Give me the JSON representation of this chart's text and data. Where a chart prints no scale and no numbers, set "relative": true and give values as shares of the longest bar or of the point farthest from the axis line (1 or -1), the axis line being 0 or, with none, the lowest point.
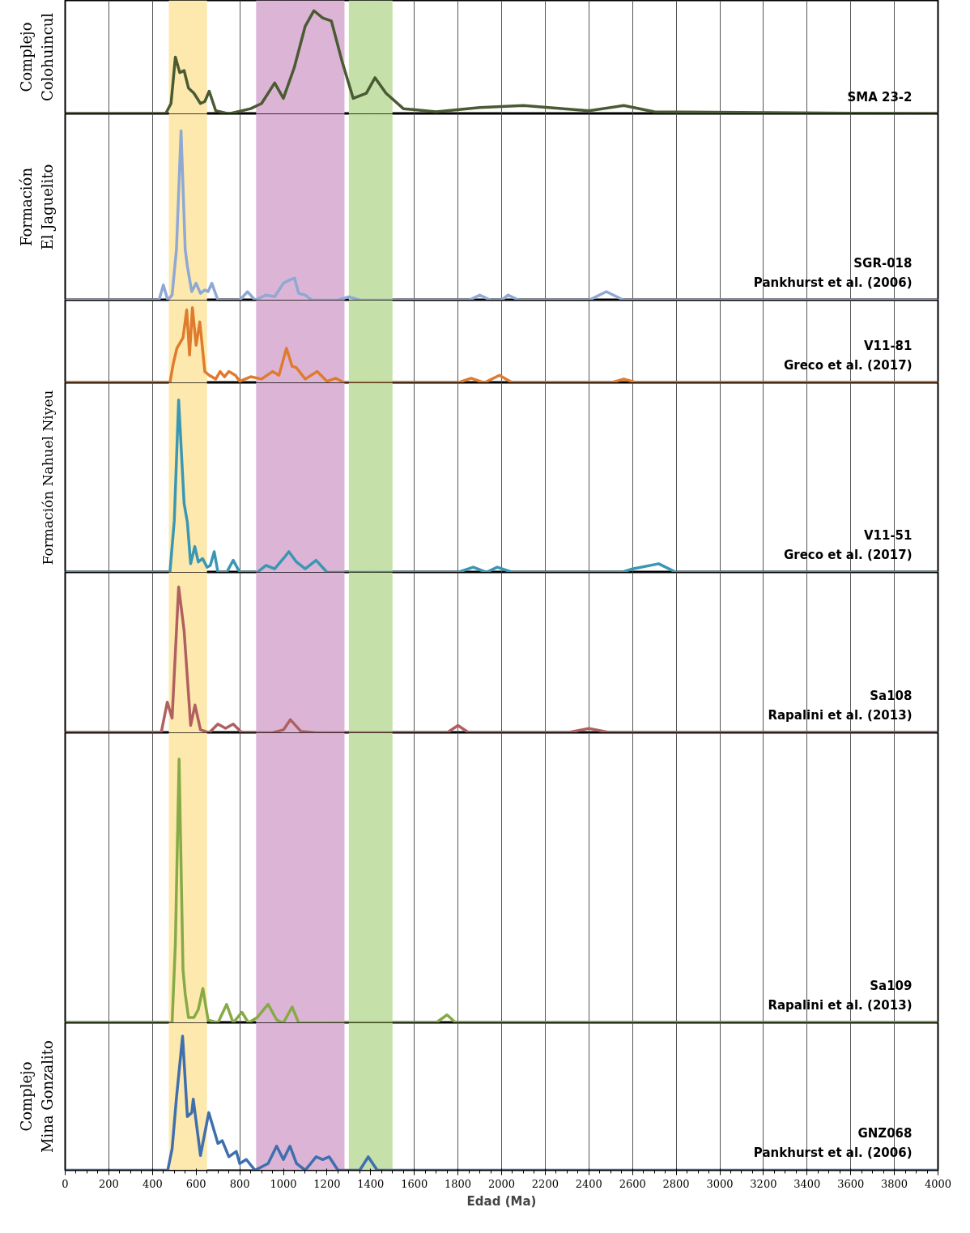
{
  "chart_data": [
    {
      "type": "line",
      "relative": true,
      "ylabel": "Complejo\nColohuincul",
      "xlim": [
        0,
        4000
      ],
      "xticks": [
        0,
        200,
        400,
        600,
        800,
        1000,
        1200,
        1400,
        1600,
        1800,
        2000,
        2200,
        2400,
        2600,
        2800,
        3000,
        3200,
        3400,
        3600,
        3800,
        4000
      ],
      "tick_labels": false,
      "grid": "x",
      "bands": [
        {
          "axis": "x",
          "from": 475,
          "to": 650,
          "color": "#fde9ad"
        },
        {
          "axis": "x",
          "from": 875,
          "to": 1280,
          "color": "#dcb5d6"
        },
        {
          "axis": "x",
          "from": 1300,
          "to": 1500,
          "color": "#c6e0a9"
        }
      ],
      "x": [
        0,
        460,
        485,
        505,
        525,
        545,
        565,
        590,
        620,
        640,
        660,
        690,
        750,
        850,
        900,
        960,
        1000,
        1050,
        1100,
        1140,
        1180,
        1220,
        1270,
        1320,
        1380,
        1420,
        1470,
        1550,
        1700,
        1900,
        2100,
        2400,
        2560,
        2700,
        4000
      ],
      "series": [
        {
          "name": "SMA 23-2",
          "color": "#4a5a32",
          "values": [
            0,
            0,
            0.1,
            0.55,
            0.4,
            0.42,
            0.25,
            0.2,
            0.1,
            0.12,
            0.22,
            0.03,
            0,
            0.05,
            0.1,
            0.3,
            0.15,
            0.45,
            0.85,
            1.0,
            0.93,
            0.9,
            0.5,
            0.15,
            0.2,
            0.35,
            0.2,
            0.05,
            0.02,
            0.06,
            0.08,
            0.03,
            0.08,
            0.02,
            0
          ]
        }
      ]
    },
    {
      "type": "line",
      "relative": true,
      "ylabel": "Formación\nEl Jaguelito",
      "xlim": [
        0,
        4000
      ],
      "xticks": [
        0,
        200,
        400,
        600,
        800,
        1000,
        1200,
        1400,
        1600,
        1800,
        2000,
        2200,
        2400,
        2600,
        2800,
        3000,
        3200,
        3400,
        3600,
        3800,
        4000
      ],
      "tick_labels": false,
      "grid": "x",
      "bands": [
        {
          "axis": "x",
          "from": 475,
          "to": 650,
          "color": "#fde9ad"
        },
        {
          "axis": "x",
          "from": 875,
          "to": 1280,
          "color": "#dcb5d6"
        },
        {
          "axis": "x",
          "from": 1300,
          "to": 1500,
          "color": "#c6e0a9"
        }
      ],
      "x": [
        0,
        430,
        450,
        470,
        490,
        510,
        531,
        550,
        560,
        580,
        600,
        620,
        640,
        655,
        672,
        700,
        800,
        836,
        870,
        920,
        960,
        1000,
        1030,
        1051,
        1070,
        1100,
        1130,
        1250,
        1300,
        1350,
        1850,
        1900,
        1950,
        2000,
        2030,
        2080,
        2400,
        2480,
        2560,
        4000
      ],
      "series": [
        {
          "name": "SGR-018",
          "color": "#8fa8d4",
          "values": [
            0,
            0,
            0.09,
            0,
            0.03,
            0.3,
            1.0,
            0.3,
            0.2,
            0.05,
            0.1,
            0.04,
            0.06,
            0.05,
            0.1,
            0,
            0,
            0.05,
            0,
            0.03,
            0.02,
            0.1,
            0.12,
            0.13,
            0.04,
            0.03,
            0,
            0,
            0.02,
            0,
            0,
            0.03,
            0,
            0,
            0.03,
            0,
            0,
            0.05,
            0,
            0
          ]
        }
      ],
      "annotations": [
        "Pankhurst et al. (2006)"
      ]
    },
    {
      "type": "line",
      "relative": true,
      "xlim": [
        0,
        4000
      ],
      "xticks": [
        0,
        200,
        400,
        600,
        800,
        1000,
        1200,
        1400,
        1600,
        1800,
        2000,
        2200,
        2400,
        2600,
        2800,
        3000,
        3200,
        3400,
        3600,
        3800,
        4000
      ],
      "tick_labels": false,
      "grid": "x",
      "bands": [
        {
          "axis": "x",
          "from": 475,
          "to": 650,
          "color": "#fde9ad"
        },
        {
          "axis": "x",
          "from": 875,
          "to": 1280,
          "color": "#dcb5d6"
        },
        {
          "axis": "x",
          "from": 1300,
          "to": 1500,
          "color": "#c6e0a9"
        }
      ],
      "x": [
        0,
        480,
        495,
        512,
        540,
        557,
        570,
        583,
        600,
        617,
        640,
        660,
        690,
        710,
        730,
        750,
        780,
        800,
        850,
        900,
        950,
        980,
        1014,
        1040,
        1060,
        1100,
        1155,
        1200,
        1240,
        1280,
        1800,
        1860,
        1920,
        1990,
        2050,
        2500,
        2560,
        2620,
        4000
      ],
      "series": [
        {
          "name": "V11-81",
          "color": "#e07b2e",
          "values": [
            0,
            0,
            0.25,
            0.46,
            0.6,
            0.97,
            0.37,
            1.0,
            0.5,
            0.81,
            0.15,
            0.1,
            0.05,
            0.15,
            0.08,
            0.15,
            0.1,
            0.02,
            0.08,
            0.05,
            0.15,
            0.1,
            0.46,
            0.22,
            0.2,
            0.05,
            0.15,
            0.02,
            0.06,
            0,
            0,
            0.06,
            0,
            0.1,
            0,
            0,
            0.05,
            0,
            0
          ]
        }
      ],
      "annotations": [
        "Greco et al. (2017)"
      ]
    },
    {
      "type": "line",
      "relative": true,
      "ylabel": "Formación Nahuel Niyeu",
      "xlim": [
        0,
        4000
      ],
      "xticks": [
        0,
        200,
        400,
        600,
        800,
        1000,
        1200,
        1400,
        1600,
        1800,
        2000,
        2200,
        2400,
        2600,
        2800,
        3000,
        3200,
        3400,
        3600,
        3800,
        4000
      ],
      "tick_labels": false,
      "grid": "x",
      "bands": [
        {
          "axis": "x",
          "from": 475,
          "to": 650,
          "color": "#fde9ad"
        },
        {
          "axis": "x",
          "from": 875,
          "to": 1280,
          "color": "#dcb5d6"
        },
        {
          "axis": "x",
          "from": 1300,
          "to": 1500,
          "color": "#c6e0a9"
        }
      ],
      "x": [
        0,
        480,
        500,
        520,
        545,
        560,
        575,
        594,
        610,
        630,
        650,
        665,
        683,
        700,
        740,
        770,
        800,
        880,
        920,
        960,
        1000,
        1025,
        1060,
        1100,
        1150,
        1200,
        1800,
        1870,
        1930,
        1980,
        2050,
        2550,
        2600,
        2720,
        2800,
        4000
      ],
      "series": [
        {
          "name": "V11-51",
          "color": "#3a97b4",
          "values": [
            0,
            0,
            0.3,
            1.0,
            0.4,
            0.29,
            0.05,
            0.15,
            0.06,
            0.08,
            0.03,
            0.04,
            0.12,
            0,
            0,
            0.07,
            0,
            0,
            0.04,
            0.02,
            0.08,
            0.12,
            0.06,
            0.02,
            0.07,
            0,
            0,
            0.03,
            0,
            0.03,
            0,
            0,
            0.02,
            0.05,
            0,
            0
          ]
        }
      ],
      "annotations": [
        "Greco et al. (2017)"
      ]
    },
    {
      "type": "line",
      "relative": true,
      "xlim": [
        0,
        4000
      ],
      "xticks": [
        0,
        200,
        400,
        600,
        800,
        1000,
        1200,
        1400,
        1600,
        1800,
        2000,
        2200,
        2400,
        2600,
        2800,
        3000,
        3200,
        3400,
        3600,
        3800,
        4000
      ],
      "tick_labels": false,
      "grid": "x",
      "bands": [
        {
          "axis": "x",
          "from": 475,
          "to": 650,
          "color": "#fde9ad"
        },
        {
          "axis": "x",
          "from": 875,
          "to": 1280,
          "color": "#dcb5d6"
        },
        {
          "axis": "x",
          "from": 1300,
          "to": 1500,
          "color": "#c6e0a9"
        }
      ],
      "x": [
        0,
        440,
        468,
        490,
        520,
        545,
        575,
        595,
        620,
        660,
        700,
        735,
        770,
        810,
        950,
        1000,
        1032,
        1080,
        1150,
        1750,
        1800,
        1850,
        2300,
        2400,
        2500,
        4000
      ],
      "series": [
        {
          "name": "Sa108",
          "color": "#b06060",
          "values": [
            0,
            0,
            0.21,
            0.1,
            1.0,
            0.7,
            0.05,
            0.19,
            0.02,
            0,
            0.06,
            0.03,
            0.06,
            0,
            0,
            0.02,
            0.09,
            0.01,
            0,
            0,
            0.05,
            0,
            0,
            0.03,
            0,
            0
          ]
        }
      ],
      "annotations": [
        "Rapalini et al. (2013)"
      ]
    },
    {
      "type": "line",
      "relative": true,
      "xlim": [
        0,
        4000
      ],
      "xticks": [
        0,
        200,
        400,
        600,
        800,
        1000,
        1200,
        1400,
        1600,
        1800,
        2000,
        2200,
        2400,
        2600,
        2800,
        3000,
        3200,
        3400,
        3600,
        3800,
        4000
      ],
      "tick_labels": false,
      "grid": "x",
      "bands": [
        {
          "axis": "x",
          "from": 475,
          "to": 650,
          "color": "#fde9ad"
        },
        {
          "axis": "x",
          "from": 875,
          "to": 1280,
          "color": "#dcb5d6"
        },
        {
          "axis": "x",
          "from": 1300,
          "to": 1500,
          "color": "#c6e0a9"
        }
      ],
      "x": [
        0,
        490,
        505,
        522,
        540,
        550,
        565,
        590,
        610,
        631,
        655,
        700,
        740,
        770,
        810,
        840,
        880,
        930,
        970,
        1000,
        1040,
        1070,
        1700,
        1750,
        1790,
        4000
      ],
      "series": [
        {
          "name": "Sa109",
          "color": "#86aa46",
          "values": [
            0,
            0,
            0.3,
            1.0,
            0.2,
            0.11,
            0.02,
            0.02,
            0.05,
            0.13,
            0.01,
            0,
            0.07,
            0,
            0.04,
            0,
            0.02,
            0.07,
            0.01,
            0,
            0.06,
            0,
            0,
            0.03,
            0,
            0
          ]
        }
      ],
      "annotations": [
        "Rapalini et al. (2013)"
      ]
    },
    {
      "type": "line",
      "relative": true,
      "ylabel": "Complejo\nMina Gonzalito",
      "xlabel": "Edad (Ma)",
      "xlim": [
        0,
        4000
      ],
      "xticks": [
        0,
        200,
        400,
        600,
        800,
        1000,
        1200,
        1400,
        1600,
        1800,
        2000,
        2200,
        2400,
        2600,
        2800,
        3000,
        3200,
        3400,
        3600,
        3800,
        4000
      ],
      "tick_labels": "x",
      "grid": "x",
      "bands": [
        {
          "axis": "x",
          "from": 475,
          "to": 650,
          "color": "#fde9ad"
        },
        {
          "axis": "x",
          "from": 875,
          "to": 1280,
          "color": "#dcb5d6"
        },
        {
          "axis": "x",
          "from": 1300,
          "to": 1500,
          "color": "#c6e0a9"
        }
      ],
      "x": [
        0,
        470,
        490,
        510,
        538,
        560,
        580,
        587,
        620,
        658,
        700,
        720,
        750,
        784,
        800,
        830,
        870,
        930,
        969,
        1000,
        1030,
        1060,
        1100,
        1150,
        1180,
        1210,
        1250,
        1350,
        1389,
        1430,
        4000
      ],
      "series": [
        {
          "name": "GNZ068",
          "color": "#3f6fae",
          "values": [
            0,
            0,
            0.16,
            0.54,
            1.0,
            0.4,
            0.43,
            0.53,
            0.11,
            0.43,
            0.2,
            0.22,
            0.1,
            0.14,
            0.05,
            0.08,
            0,
            0.05,
            0.18,
            0.08,
            0.18,
            0.05,
            0,
            0.1,
            0.08,
            0.1,
            0,
            0,
            0.1,
            0,
            0
          ]
        }
      ],
      "annotations": [
        "Pankhurst et al. (2006)"
      ]
    }
  ]
}
